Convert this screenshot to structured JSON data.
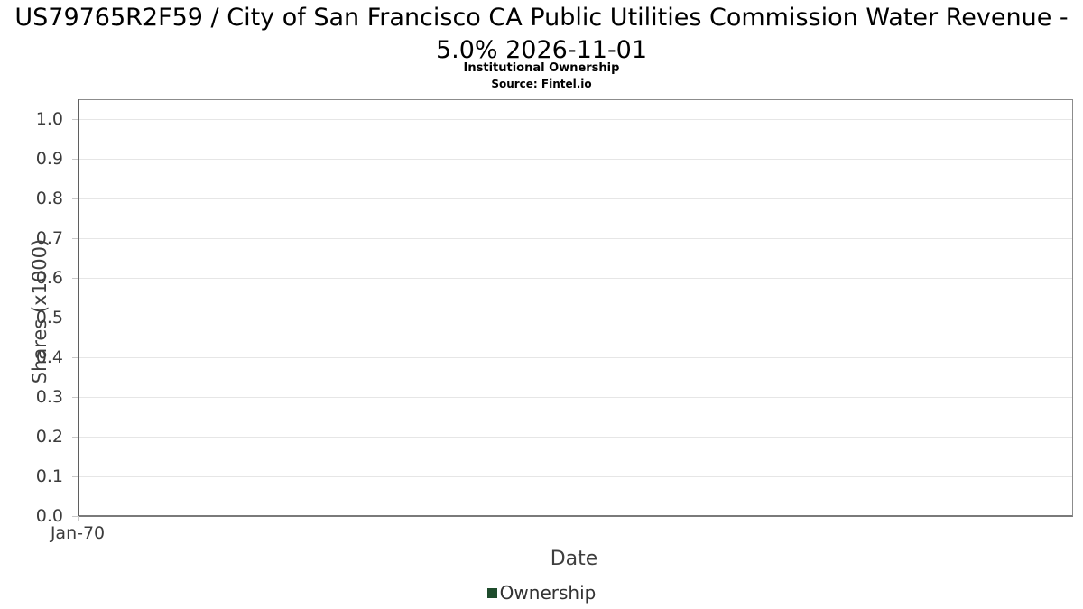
{
  "chart_data": {
    "type": "line",
    "title": "US79765R2F59 / City of San Francisco CA Public Utilities Commission Water Revenue - 5.0% 2026-11-01",
    "subtitle": "Institutional Ownership",
    "source": "Source: Fintel.io",
    "xlabel": "Date",
    "ylabel": "Shares (x1000)",
    "x_ticks": [
      "Jan-70"
    ],
    "y_ticks": [
      "1.0",
      "0.9",
      "0.8",
      "0.7",
      "0.6",
      "0.5",
      "0.4",
      "0.3",
      "0.2",
      "0.1",
      "0.0"
    ],
    "y_tick_values": [
      1.0,
      0.9,
      0.8,
      0.7,
      0.6,
      0.5,
      0.4,
      0.3,
      0.2,
      0.1,
      0.0
    ],
    "ylim": [
      0.0,
      1.05
    ],
    "grid": true,
    "legend_position": "bottom",
    "series": [
      {
        "name": "Ownership",
        "color": "#1e4c2c",
        "x": [],
        "values": []
      }
    ]
  }
}
